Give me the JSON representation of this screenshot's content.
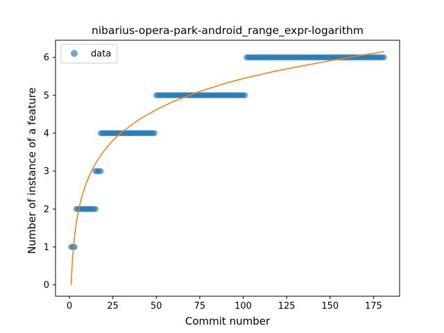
{
  "chart_data": {
    "type": "scatter",
    "title": "nibarius-opera-park-android_range_expr-logarithm",
    "xlabel": "Commit number",
    "ylabel": "Number of instance of a feature",
    "xlim": [
      -8,
      190
    ],
    "ylim": [
      -0.3,
      6.45
    ],
    "xticks": [
      0,
      25,
      50,
      75,
      100,
      125,
      150,
      175
    ],
    "yticks": [
      0,
      1,
      2,
      3,
      4,
      5,
      6
    ],
    "grid": false,
    "legend_position": "top-left",
    "colors": {
      "data": "#1f77b4",
      "fit": "#ff7f0e"
    },
    "series": [
      {
        "name": "data",
        "kind": "scatter",
        "segments": [
          {
            "x_start": 1,
            "x_end": 3,
            "y": 1
          },
          {
            "x_start": 4,
            "x_end": 15,
            "y": 2
          },
          {
            "x_start": 15,
            "x_end": 18,
            "y": 3
          },
          {
            "x_start": 18,
            "x_end": 49,
            "y": 4
          },
          {
            "x_start": 50,
            "x_end": 101,
            "y": 5
          },
          {
            "x_start": 102,
            "x_end": 181,
            "y": 6
          }
        ]
      },
      {
        "kind": "line",
        "fit": "logarithmic",
        "x": [
          1,
          1.5,
          2,
          3,
          4,
          5,
          6,
          8,
          10,
          13,
          16,
          20,
          25,
          30,
          40,
          50,
          60,
          75,
          90,
          100,
          115,
          130,
          150,
          165,
          181
        ],
        "y": [
          0.0,
          0.48,
          0.82,
          1.3,
          1.64,
          1.9,
          2.12,
          2.46,
          2.72,
          3.03,
          3.28,
          3.54,
          3.81,
          4.02,
          4.36,
          4.62,
          4.84,
          5.1,
          5.32,
          5.44,
          5.6,
          5.74,
          5.91,
          6.03,
          6.15
        ]
      }
    ]
  }
}
